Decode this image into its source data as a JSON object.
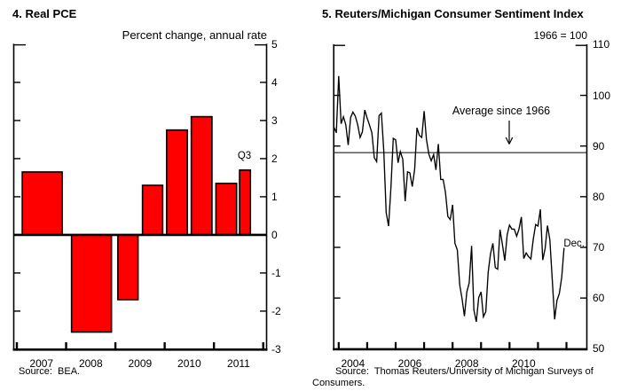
{
  "left_chart": {
    "title": "4. Real PCE",
    "unit_label": "Percent change, annual rate",
    "q3_label": "Q3",
    "source": "Source:  BEA."
  },
  "right_chart": {
    "title": "5. Reuters/Michigan Consumer Sentiment Index",
    "unit_label": "1966 = 100",
    "average_label": "Average since 1966",
    "dec_label": "Dec.",
    "source_lines": [
      "Source:  Thomas Reuters/University of Michigan Surveys of",
      "Consumers."
    ]
  },
  "chart_data": [
    {
      "type": "bar",
      "title": "4. Real PCE",
      "ylabel": "Percent change, annual rate",
      "ylim": [
        -3,
        5
      ],
      "yticks": [
        5,
        4,
        3,
        2,
        1,
        0,
        -1,
        -2,
        -3
      ],
      "xtick_labels": [
        "2007",
        "2008",
        "2009",
        "2010",
        "2011"
      ],
      "bar_color": "#ff0000",
      "bar_outline": "#000000",
      "grid": false,
      "bars": [
        {
          "period": "2007",
          "value": 1.65,
          "t0": 0.11,
          "t1": 0.92
        },
        {
          "period": "2008",
          "value": -2.55,
          "t0": 1.11,
          "t1": 1.92
        },
        {
          "period": "2009:H1",
          "value": -1.7,
          "t0": 2.05,
          "t1": 2.46
        },
        {
          "period": "2009:H2",
          "value": 1.3,
          "t0": 2.55,
          "t1": 2.96
        },
        {
          "period": "2010:H1",
          "value": 2.75,
          "t0": 3.04,
          "t1": 3.46
        },
        {
          "period": "2010:H2",
          "value": 3.1,
          "t0": 3.54,
          "t1": 3.96
        },
        {
          "period": "2011:H1",
          "value": 1.35,
          "t0": 4.04,
          "t1": 4.46
        },
        {
          "period": "2011:Q3",
          "value": 1.7,
          "t0": 4.52,
          "t1": 4.74,
          "annotation": "Q3"
        }
      ],
      "source": "Source:  BEA."
    },
    {
      "type": "line",
      "title": "5. Reuters/Michigan Consumer Sentiment Index",
      "ylabel": "1966 = 100",
      "ylim": [
        50,
        110
      ],
      "yticks": [
        110,
        100,
        90,
        80,
        70,
        60,
        50
      ],
      "xtick_labels": [
        "2004",
        "2006",
        "2008",
        "2010"
      ],
      "grid": false,
      "average_line": {
        "label": "Average since 1966",
        "value": 88.7
      },
      "end_label": "Dec.",
      "series": [
        {
          "name": "Reuters/Michigan Consumer Sentiment Index",
          "frequency": "monthly",
          "start": "2003-11",
          "values": [
            93.7,
            92.6,
            103.8,
            94.4,
            95.8,
            94.2,
            90.2,
            95.6,
            96.7,
            95.9,
            94.2,
            91.7,
            92.8,
            97.1,
            95.5,
            94.1,
            92.6,
            87.7,
            86.9,
            96.0,
            96.5,
            89.1,
            76.9,
            74.2,
            81.6,
            91.5,
            91.2,
            86.7,
            88.9,
            87.4,
            79.1,
            84.9,
            84.7,
            82.0,
            85.4,
            93.6,
            92.1,
            91.7,
            96.9,
            91.3,
            88.4,
            87.1,
            88.3,
            85.3,
            90.4,
            83.4,
            83.4,
            80.9,
            76.1,
            75.5,
            78.4,
            70.8,
            69.5,
            62.6,
            59.8,
            56.4,
            61.2,
            63.0,
            70.3,
            57.6,
            55.3,
            60.1,
            61.2,
            56.3,
            57.3,
            65.1,
            68.7,
            70.8,
            66.0,
            65.7,
            73.5,
            70.6,
            67.4,
            72.5,
            74.4,
            73.6,
            73.6,
            72.2,
            73.6,
            76.0,
            67.8,
            68.9,
            68.2,
            67.7,
            71.6,
            74.5,
            74.2,
            77.5,
            67.5,
            69.8,
            74.3,
            71.5,
            63.7,
            55.8,
            59.5,
            60.9,
            64.1,
            69.9
          ]
        }
      ],
      "source": "Source:  Thomas Reuters/University of Michigan Surveys of Consumers."
    }
  ]
}
